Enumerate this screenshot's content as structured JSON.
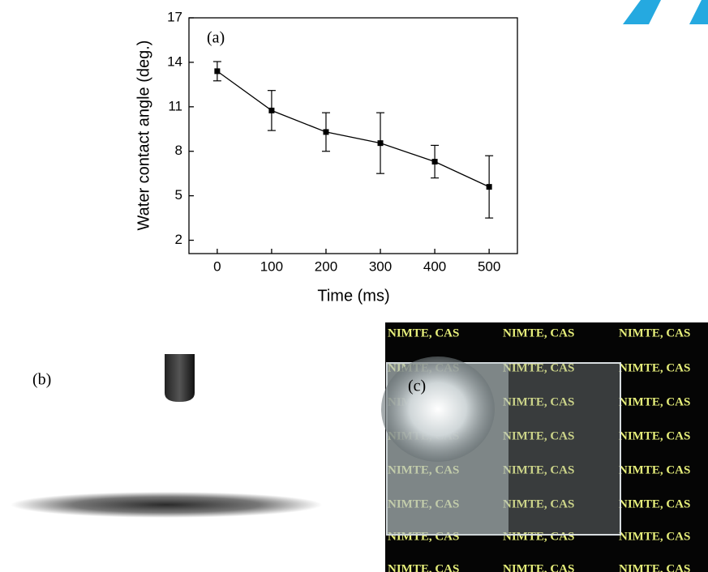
{
  "chart_data": {
    "type": "line",
    "panel_label": "(a)",
    "xlabel": "Time (ms)",
    "ylabel": "Water contact angle (deg.)",
    "x": [
      0,
      100,
      200,
      300,
      400,
      500
    ],
    "series": [
      {
        "color": "#000000",
        "values": [
          13.4,
          10.75,
          9.3,
          8.55,
          7.3,
          5.6
        ],
        "errors": [
          0.65,
          1.35,
          1.3,
          2.05,
          1.1,
          2.1
        ]
      }
    ],
    "xlim": [
      -52,
      552
    ],
    "xticks": [
      0,
      100,
      200,
      300,
      400,
      500
    ],
    "ylim": [
      1.1,
      17
    ],
    "yticks": [
      2,
      5,
      8,
      11,
      14,
      17
    ]
  },
  "panel_b": {
    "label": "(b)"
  },
  "panel_c": {
    "label": "(c)",
    "background_text": "NIMTE, CAS"
  }
}
